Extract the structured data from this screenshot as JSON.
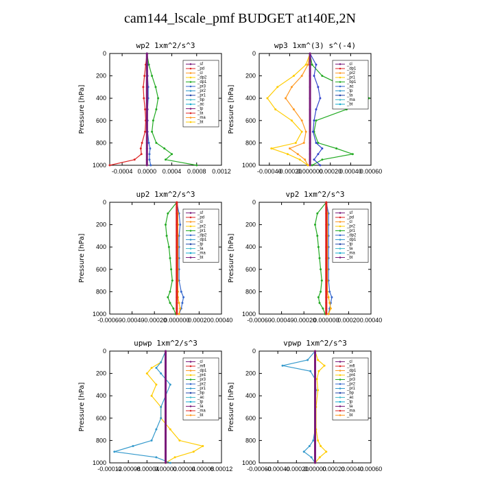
{
  "title": "cam144_lscale_pmf  BUDGET at140E,2N",
  "chart_data": [
    {
      "type": "line",
      "title": "wp2  1xm^2/s^3",
      "ylabel": "Pressure [hPa]",
      "ylim": [
        1000,
        0
      ],
      "xlim": [
        -0.0006,
        0.0012
      ],
      "yticks": [
        "0",
        "200",
        "400",
        "600",
        "800",
        "1000"
      ],
      "xticks": [
        "-0.0004",
        "0.0000",
        "0.0004",
        "0.0008",
        "0.0012"
      ],
      "legend": [
        "_sf",
        "_pd",
        "_cl",
        "_dp2",
        "_dp1",
        "_pr3",
        "_pr2",
        "_pr1",
        "_bp",
        "_ac",
        "_tp",
        "_ta",
        "_ma",
        "_bt"
      ],
      "pressure": [
        0,
        100,
        200,
        300,
        400,
        500,
        600,
        700,
        800,
        850,
        900,
        950,
        1000
      ],
      "series": [
        {
          "name": "_pd",
          "color": "#dd2222",
          "values": [
            0,
            -2e-05,
            -4e-05,
            -6e-05,
            -5e-05,
            -3e-05,
            -2e-05,
            -3e-05,
            -8e-05,
            -0.0001,
            -9e-05,
            -0.0002,
            -0.0006
          ]
        },
        {
          "name": "_bp",
          "color": "#22aa22",
          "values": [
            0,
            3e-05,
            8e-05,
            0.00014,
            0.00018,
            0.00015,
            0.0001,
            8e-05,
            0.00015,
            0.00028,
            0.0004,
            0.0003,
            0.0008
          ]
        },
        {
          "name": "_ac",
          "color": "#3366cc",
          "values": [
            0,
            1e-05,
            1e-05,
            2e-05,
            2e-05,
            1e-05,
            1e-05,
            1e-05,
            3e-05,
            5e-05,
            4e-05,
            4e-05,
            6e-05
          ]
        },
        {
          "name": "_bt",
          "color": "#7a1a7a",
          "values": [
            0,
            0,
            0,
            0,
            0,
            0,
            0,
            0,
            0,
            0,
            0,
            0,
            0
          ]
        }
      ]
    },
    {
      "type": "line",
      "title": "wp3  1xm^(3) s^(-4)",
      "ylabel": "Pressure [hPa]",
      "ylim": [
        1000,
        0
      ],
      "xlim": [
        -0.0005,
        0.0006
      ],
      "yticks": [
        "0",
        "200",
        "400",
        "600",
        "800",
        "1000"
      ],
      "xticks": [
        "-0.00040",
        "-0.00020",
        "0.000000",
        "0.00020",
        "0.00040",
        "0.00060"
      ],
      "legend": [
        "_cl",
        "_dp1",
        "_pr2",
        "_pr1",
        "_bp1",
        "_ac",
        "_tp",
        "_ta",
        "_ma",
        "_bt"
      ],
      "pressure": [
        0,
        100,
        200,
        300,
        400,
        500,
        600,
        700,
        800,
        850,
        900,
        950,
        1000
      ],
      "series": [
        {
          "name": "_pr2",
          "color": "#ff9922",
          "values": [
            0,
            -2e-05,
            -8e-05,
            -0.00018,
            -0.00024,
            -0.00016,
            -8e-05,
            -4e-05,
            -6e-05,
            -0.0002,
            -0.00012,
            -5e-05,
            -2e-05
          ]
        },
        {
          "name": "_pr1",
          "color": "#ffcc00",
          "values": [
            0,
            -4e-05,
            -0.00016,
            -0.00032,
            -0.00042,
            -0.00034,
            -0.00018,
            -8e-05,
            -0.00014,
            -0.00038,
            -0.00022,
            -0.0001,
            -2e-05
          ]
        },
        {
          "name": "_ac",
          "color": "#22aa22",
          "values": [
            0,
            2e-05,
            0.00012,
            0.00035,
            0.00058,
            0.00036,
            6e-05,
            4e-05,
            8e-05,
            0.00026,
            0.00042,
            0.00012,
            2e-05
          ]
        },
        {
          "name": "_tp",
          "color": "#3344cc",
          "values": [
            0,
            6e-05,
            4e-05,
            8e-05,
            0.0001,
            6e-05,
            4e-05,
            3e-05,
            6e-05,
            0.00012,
            8e-05,
            4e-05,
            0.0001
          ]
        },
        {
          "name": "_bt",
          "color": "#7a1a7a",
          "values": [
            0,
            0,
            0,
            0,
            0,
            0,
            0,
            0,
            0,
            0,
            0,
            0,
            0
          ]
        }
      ]
    },
    {
      "type": "line",
      "title": "up2  1xm^2/s^3",
      "ylabel": "Pressure [hPa]",
      "ylim": [
        1000,
        0
      ],
      "xlim": [
        -0.0006,
        0.0004
      ],
      "yticks": [
        "0",
        "200",
        "400",
        "600",
        "800",
        "1000"
      ],
      "xticks": [
        "-0.00060",
        "-0.00040",
        "-0.00020",
        "0.000000",
        "0.00020",
        "0.00040"
      ],
      "legend": [
        "_sf",
        "_pd",
        "_cl",
        "_pr2",
        "_pr1",
        "_dp2",
        "_dp1",
        "_tp",
        "_ta",
        "_ma",
        "_bt"
      ],
      "pressure": [
        0,
        100,
        200,
        300,
        400,
        500,
        600,
        700,
        800,
        850,
        900,
        950,
        1000
      ],
      "series": [
        {
          "name": "_dp2",
          "color": "#22aa22",
          "values": [
            0,
            -8e-05,
            -0.0001,
            -9e-05,
            -7e-05,
            -6e-05,
            -5e-05,
            -4e-05,
            -6e-05,
            -8e-05,
            -6e-05,
            -3e-05,
            -1e-05
          ]
        },
        {
          "name": "_pd",
          "color": "#3366cc",
          "values": [
            0,
            2e-05,
            3e-05,
            2e-05,
            2e-05,
            2e-05,
            2e-05,
            2e-05,
            4e-05,
            6e-05,
            5e-05,
            4e-05,
            2e-05
          ]
        },
        {
          "name": "_pr2",
          "color": "#ffaa00",
          "values": [
            0,
            1e-05,
            1e-05,
            1e-05,
            1e-05,
            1e-05,
            1e-05,
            1e-05,
            1e-05,
            1e-05,
            2e-05,
            3e-05,
            2e-05
          ]
        },
        {
          "name": "_sf",
          "color": "#dd2222",
          "values": [
            0,
            0,
            0,
            0,
            0,
            0,
            0,
            0,
            0,
            0,
            0,
            0,
            0
          ]
        }
      ]
    },
    {
      "type": "line",
      "title": "vp2  1xm^2/s^3",
      "ylabel": "Pressure [hPa]",
      "ylim": [
        1000,
        0
      ],
      "xlim": [
        -0.0006,
        0.0004
      ],
      "yticks": [
        "0",
        "200",
        "400",
        "600",
        "800",
        "1000"
      ],
      "xticks": [
        "-0.00060",
        "-0.00040",
        "-0.00020",
        "0.000000",
        "0.00020",
        "0.00040"
      ],
      "legend": [
        "_sf",
        "_pd",
        "_cl",
        "_pr2",
        "_pr1",
        "_dp2",
        "_dp1",
        "_tp",
        "_ta",
        "_ma",
        "_bt"
      ],
      "pressure": [
        0,
        100,
        200,
        300,
        400,
        500,
        600,
        700,
        800,
        850,
        900,
        950,
        1000
      ],
      "series": [
        {
          "name": "_dp2",
          "color": "#22aa22",
          "values": [
            0,
            -8e-05,
            -0.0001,
            -8e-05,
            -7e-05,
            -6e-05,
            -5e-05,
            -4e-05,
            -5e-05,
            -7e-05,
            -6e-05,
            -3e-05,
            -1e-05
          ]
        },
        {
          "name": "_pd",
          "color": "#3366cc",
          "values": [
            0,
            2e-05,
            2e-05,
            2e-05,
            2e-05,
            2e-05,
            2e-05,
            2e-05,
            3e-05,
            5e-05,
            4e-05,
            3e-05,
            2e-05
          ]
        },
        {
          "name": "_pr2",
          "color": "#ffaa00",
          "values": [
            0,
            1e-05,
            1e-05,
            1e-05,
            1e-05,
            1e-05,
            1e-05,
            1e-05,
            1e-05,
            2e-05,
            3e-05,
            4e-05,
            2e-05
          ]
        },
        {
          "name": "_sf",
          "color": "#dd2222",
          "values": [
            0,
            0,
            0,
            0,
            0,
            0,
            0,
            0,
            0,
            0,
            0,
            0,
            0
          ]
        }
      ]
    },
    {
      "type": "line",
      "title": "upwp  1xm^2/s^3",
      "ylabel": "Pressure [hPa]",
      "ylim": [
        1000,
        0
      ],
      "xlim": [
        -0.00012,
        0.00012
      ],
      "yticks": [
        "0",
        "200",
        "400",
        "600",
        "800",
        "1000"
      ],
      "xticks": [
        "-0.00012",
        "-0.00008",
        "-0.00004",
        "0.00000",
        "0.00004",
        "0.00008",
        "0.00012"
      ],
      "legend": [
        "_cl",
        "_mfl",
        "_dp1",
        "_pr4",
        "_pr3",
        "_pr2",
        "_pr1",
        "_bp",
        "_ac",
        "_tp",
        "_ta",
        "_ma",
        "_bt"
      ],
      "pressure": [
        0,
        100,
        150,
        200,
        300,
        400,
        500,
        600,
        700,
        800,
        850,
        900,
        950,
        1000
      ],
      "series": [
        {
          "name": "_pr1",
          "color": "#ffcc00",
          "values": [
            0,
            -1e-05,
            -3e-05,
            -4e-05,
            -2e-05,
            -3e-05,
            -1e-05,
            -1e-05,
            1e-05,
            3e-05,
            8e-05,
            6e-05,
            2e-05,
            0
          ]
        },
        {
          "name": "_tp",
          "color": "#3399cc",
          "values": [
            0,
            -1e-05,
            -2e-05,
            -1e-05,
            1e-05,
            0,
            -1e-05,
            -1e-05,
            -2e-05,
            -3e-05,
            -7e-05,
            -0.00011,
            -2e-05,
            1e-05
          ]
        },
        {
          "name": "_bt",
          "color": "#7a1a7a",
          "values": [
            0,
            0,
            0,
            0,
            0,
            0,
            0,
            0,
            0,
            0,
            0,
            0,
            0,
            0
          ]
        }
      ]
    },
    {
      "type": "line",
      "title": "vpwp  1xm^2/s^3",
      "ylabel": "Pressure [hPa]",
      "ylim": [
        1000,
        0
      ],
      "xlim": [
        -0.0006,
        0.0006
      ],
      "yticks": [
        "0",
        "200",
        "400",
        "600",
        "800",
        "1000"
      ],
      "xticks": [
        "-0.00060",
        "-0.00040",
        "-0.00020",
        "0.00000",
        "0.00020",
        "0.00040",
        "0.00060"
      ],
      "legend": [
        "_cl",
        "_mfl",
        "_dp1",
        "_pr4",
        "_pr3",
        "_pr2",
        "_pr1",
        "_bp",
        "_ac",
        "_tp",
        "_ta",
        "_ma",
        "_bt"
      ],
      "pressure": [
        0,
        80,
        130,
        180,
        250,
        350,
        500,
        700,
        800,
        850,
        900,
        950,
        1000
      ],
      "series": [
        {
          "name": "_tp",
          "color": "#3399cc",
          "values": [
            0,
            -8e-05,
            -0.00035,
            -5e-05,
            0,
            1e-05,
            0,
            0,
            -2e-05,
            -6e-05,
            -0.00012,
            -4e-05,
            0
          ]
        },
        {
          "name": "_pr1",
          "color": "#ffcc00",
          "values": [
            0,
            3e-05,
            0.0001,
            4e-05,
            2e-05,
            3e-05,
            1e-05,
            1e-05,
            3e-05,
            6e-05,
            0.00012,
            5e-05,
            0
          ]
        },
        {
          "name": "_bt",
          "color": "#7a1a7a",
          "values": [
            0,
            0,
            0,
            0,
            0,
            0,
            0,
            0,
            0,
            0,
            0,
            0,
            0
          ]
        }
      ]
    }
  ]
}
